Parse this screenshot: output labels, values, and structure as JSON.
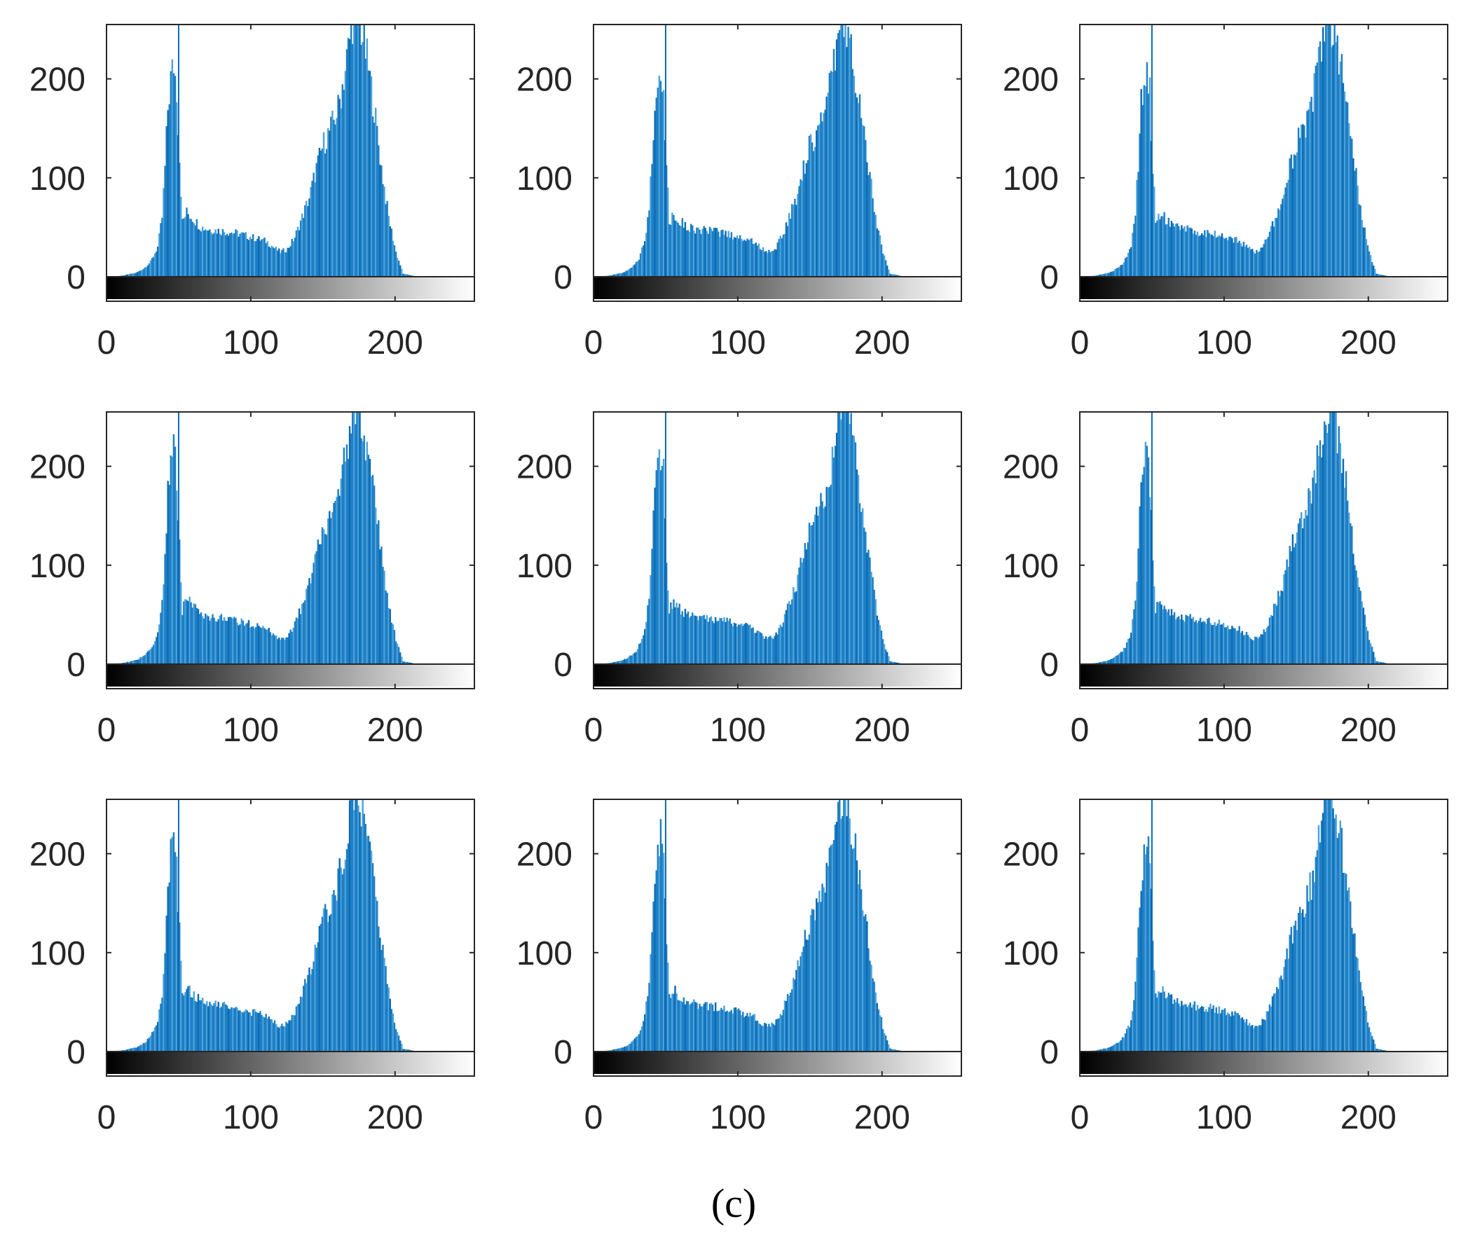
{
  "figure": {
    "caption": "(c)",
    "bar_color": "#1f7fc4",
    "bar_color_light": "#4da3dd",
    "bar_color_dark": "#0a6ab4"
  },
  "chart_data": [
    {
      "type": "bar",
      "histogram": "grayscale-intensity",
      "xlim": [
        0,
        255
      ],
      "ylim": [
        -20,
        255
      ],
      "xticks": [
        0,
        100,
        200
      ],
      "yticks": [
        0,
        100,
        200
      ],
      "colorbar": "grayscale",
      "bins_x": [
        0,
        10,
        20,
        25,
        30,
        35,
        38,
        40,
        42,
        44,
        46,
        48,
        50,
        52,
        55,
        60,
        65,
        70,
        80,
        90,
        100,
        110,
        115,
        120,
        125,
        130,
        135,
        140,
        145,
        150,
        155,
        160,
        165,
        170,
        175,
        180,
        185,
        190,
        195,
        200,
        205,
        215,
        255
      ],
      "bins_y": [
        0,
        1,
        4,
        8,
        15,
        30,
        60,
        110,
        170,
        200,
        215,
        190,
        120,
        55,
        65,
        58,
        50,
        48,
        46,
        44,
        40,
        36,
        30,
        25,
        28,
        40,
        60,
        80,
        110,
        135,
        150,
        170,
        210,
        260,
        258,
        220,
        170,
        110,
        60,
        25,
        3,
        0,
        0
      ],
      "spike": {
        "x": 50,
        "y": 255
      }
    },
    {
      "type": "bar",
      "histogram": "grayscale-intensity",
      "xlim": [
        0,
        255
      ],
      "ylim": [
        -20,
        255
      ],
      "xticks": [
        0,
        100,
        200
      ],
      "yticks": [
        0,
        100,
        200
      ],
      "colorbar": "grayscale",
      "bins_x": [
        0,
        10,
        20,
        25,
        30,
        35,
        38,
        40,
        42,
        44,
        46,
        48,
        50,
        52,
        55,
        60,
        65,
        70,
        80,
        90,
        100,
        110,
        115,
        120,
        125,
        130,
        135,
        140,
        145,
        150,
        155,
        160,
        165,
        170,
        175,
        180,
        185,
        190,
        195,
        200,
        205,
        215,
        255
      ],
      "bins_y": [
        0,
        1,
        4,
        8,
        15,
        35,
        70,
        120,
        180,
        200,
        215,
        190,
        110,
        55,
        62,
        55,
        50,
        48,
        46,
        44,
        40,
        36,
        30,
        25,
        28,
        40,
        60,
        80,
        110,
        135,
        150,
        170,
        200,
        255,
        258,
        215,
        165,
        110,
        60,
        25,
        3,
        0,
        0
      ],
      "spike": {
        "x": 50,
        "y": 255
      }
    },
    {
      "type": "bar",
      "histogram": "grayscale-intensity",
      "xlim": [
        0,
        255
      ],
      "ylim": [
        -20,
        255
      ],
      "xticks": [
        0,
        100,
        200
      ],
      "yticks": [
        0,
        100,
        200
      ],
      "colorbar": "grayscale",
      "bins_x": [
        0,
        10,
        20,
        25,
        30,
        35,
        38,
        40,
        42,
        44,
        46,
        48,
        50,
        52,
        55,
        60,
        65,
        70,
        80,
        90,
        100,
        110,
        115,
        120,
        125,
        130,
        135,
        140,
        145,
        150,
        155,
        160,
        165,
        170,
        175,
        180,
        185,
        190,
        195,
        200,
        205,
        215,
        255
      ],
      "bins_y": [
        0,
        1,
        4,
        8,
        15,
        30,
        65,
        115,
        175,
        205,
        212,
        185,
        115,
        55,
        64,
        57,
        50,
        48,
        46,
        44,
        40,
        36,
        30,
        25,
        28,
        40,
        60,
        80,
        110,
        135,
        150,
        170,
        215,
        258,
        258,
        218,
        170,
        110,
        60,
        25,
        3,
        0,
        0
      ],
      "spike": {
        "x": 50,
        "y": 255
      }
    },
    {
      "type": "bar",
      "histogram": "grayscale-intensity",
      "xlim": [
        0,
        255
      ],
      "ylim": [
        -20,
        255
      ],
      "xticks": [
        0,
        100,
        200
      ],
      "yticks": [
        0,
        100,
        200
      ],
      "colorbar": "grayscale",
      "bins_x": [
        0,
        10,
        20,
        25,
        30,
        35,
        38,
        40,
        42,
        44,
        46,
        48,
        50,
        52,
        55,
        60,
        65,
        70,
        80,
        90,
        100,
        110,
        115,
        120,
        125,
        130,
        135,
        140,
        145,
        150,
        155,
        160,
        165,
        170,
        175,
        180,
        185,
        190,
        195,
        200,
        205,
        215,
        255
      ],
      "bins_y": [
        0,
        1,
        4,
        8,
        15,
        30,
        60,
        110,
        170,
        200,
        215,
        190,
        120,
        55,
        65,
        58,
        50,
        48,
        46,
        44,
        40,
        36,
        30,
        25,
        28,
        40,
        60,
        80,
        110,
        135,
        150,
        170,
        210,
        260,
        258,
        220,
        170,
        110,
        60,
        25,
        3,
        0,
        0
      ],
      "spike": {
        "x": 50,
        "y": 255
      }
    },
    {
      "type": "bar",
      "histogram": "grayscale-intensity",
      "xlim": [
        0,
        255
      ],
      "ylim": [
        -20,
        255
      ],
      "xticks": [
        0,
        100,
        200
      ],
      "yticks": [
        0,
        100,
        200
      ],
      "colorbar": "grayscale",
      "bins_x": [
        0,
        10,
        20,
        25,
        30,
        35,
        38,
        40,
        42,
        44,
        46,
        48,
        50,
        52,
        55,
        60,
        65,
        70,
        80,
        90,
        100,
        110,
        115,
        120,
        125,
        130,
        135,
        140,
        145,
        150,
        155,
        160,
        165,
        170,
        175,
        180,
        185,
        190,
        195,
        200,
        205,
        215,
        255
      ],
      "bins_y": [
        0,
        1,
        4,
        8,
        15,
        35,
        70,
        120,
        180,
        200,
        215,
        190,
        110,
        55,
        62,
        55,
        50,
        48,
        46,
        44,
        40,
        36,
        30,
        25,
        28,
        40,
        60,
        80,
        110,
        135,
        150,
        170,
        200,
        255,
        258,
        215,
        165,
        110,
        60,
        25,
        3,
        0,
        0
      ],
      "spike": {
        "x": 50,
        "y": 255
      }
    },
    {
      "type": "bar",
      "histogram": "grayscale-intensity",
      "xlim": [
        0,
        255
      ],
      "ylim": [
        -20,
        255
      ],
      "xticks": [
        0,
        100,
        200
      ],
      "yticks": [
        0,
        100,
        200
      ],
      "colorbar": "grayscale",
      "bins_x": [
        0,
        10,
        20,
        25,
        30,
        35,
        38,
        40,
        42,
        44,
        46,
        48,
        50,
        52,
        55,
        60,
        65,
        70,
        80,
        90,
        100,
        110,
        115,
        120,
        125,
        130,
        135,
        140,
        145,
        150,
        155,
        160,
        165,
        170,
        175,
        180,
        185,
        190,
        195,
        200,
        205,
        215,
        255
      ],
      "bins_y": [
        0,
        1,
        4,
        8,
        15,
        30,
        65,
        115,
        175,
        205,
        212,
        185,
        115,
        55,
        64,
        57,
        50,
        48,
        46,
        44,
        40,
        36,
        30,
        25,
        28,
        40,
        60,
        80,
        110,
        135,
        150,
        170,
        215,
        258,
        258,
        218,
        170,
        110,
        60,
        25,
        3,
        0,
        0
      ],
      "spike": {
        "x": 50,
        "y": 255
      }
    },
    {
      "type": "bar",
      "histogram": "grayscale-intensity",
      "xlim": [
        0,
        255
      ],
      "ylim": [
        -20,
        255
      ],
      "xticks": [
        0,
        100,
        200
      ],
      "yticks": [
        0,
        100,
        200
      ],
      "colorbar": "grayscale",
      "bins_x": [
        0,
        10,
        20,
        25,
        30,
        35,
        38,
        40,
        42,
        44,
        46,
        48,
        50,
        52,
        55,
        60,
        65,
        70,
        80,
        90,
        100,
        110,
        115,
        120,
        125,
        130,
        135,
        140,
        145,
        150,
        155,
        160,
        165,
        170,
        175,
        180,
        185,
        190,
        195,
        200,
        205,
        215,
        255
      ],
      "bins_y": [
        0,
        1,
        4,
        8,
        15,
        30,
        60,
        110,
        170,
        200,
        215,
        190,
        120,
        55,
        65,
        58,
        50,
        48,
        46,
        44,
        40,
        36,
        30,
        25,
        28,
        40,
        60,
        80,
        110,
        135,
        150,
        170,
        210,
        260,
        258,
        220,
        170,
        110,
        60,
        25,
        3,
        0,
        0
      ],
      "spike": {
        "x": 50,
        "y": 255
      }
    },
    {
      "type": "bar",
      "histogram": "grayscale-intensity",
      "xlim": [
        0,
        255
      ],
      "ylim": [
        -20,
        255
      ],
      "xticks": [
        0,
        100,
        200
      ],
      "yticks": [
        0,
        100,
        200
      ],
      "colorbar": "grayscale",
      "bins_x": [
        0,
        10,
        20,
        25,
        30,
        35,
        38,
        40,
        42,
        44,
        46,
        48,
        50,
        52,
        55,
        60,
        65,
        70,
        80,
        90,
        100,
        110,
        115,
        120,
        125,
        130,
        135,
        140,
        145,
        150,
        155,
        160,
        165,
        170,
        175,
        180,
        185,
        190,
        195,
        200,
        205,
        215,
        255
      ],
      "bins_y": [
        0,
        1,
        4,
        8,
        15,
        35,
        70,
        120,
        180,
        200,
        215,
        190,
        110,
        55,
        62,
        55,
        50,
        48,
        46,
        44,
        40,
        36,
        30,
        25,
        28,
        40,
        60,
        80,
        110,
        135,
        150,
        170,
        200,
        255,
        258,
        215,
        165,
        110,
        60,
        25,
        3,
        0,
        0
      ],
      "spike": {
        "x": 50,
        "y": 255
      }
    },
    {
      "type": "bar",
      "histogram": "grayscale-intensity",
      "xlim": [
        0,
        255
      ],
      "ylim": [
        -20,
        255
      ],
      "xticks": [
        0,
        100,
        200
      ],
      "yticks": [
        0,
        100,
        200
      ],
      "colorbar": "grayscale",
      "bins_x": [
        0,
        10,
        20,
        25,
        30,
        35,
        38,
        40,
        42,
        44,
        46,
        48,
        50,
        52,
        55,
        60,
        65,
        70,
        80,
        90,
        100,
        110,
        115,
        120,
        125,
        130,
        135,
        140,
        145,
        150,
        155,
        160,
        165,
        170,
        175,
        180,
        185,
        190,
        195,
        200,
        205,
        215,
        255
      ],
      "bins_y": [
        0,
        1,
        4,
        8,
        15,
        30,
        65,
        115,
        175,
        205,
        212,
        185,
        115,
        55,
        64,
        57,
        50,
        48,
        46,
        44,
        40,
        36,
        30,
        25,
        28,
        40,
        60,
        80,
        110,
        135,
        150,
        170,
        215,
        258,
        258,
        218,
        170,
        110,
        60,
        25,
        3,
        0,
        0
      ],
      "spike": {
        "x": 50,
        "y": 255
      }
    }
  ]
}
